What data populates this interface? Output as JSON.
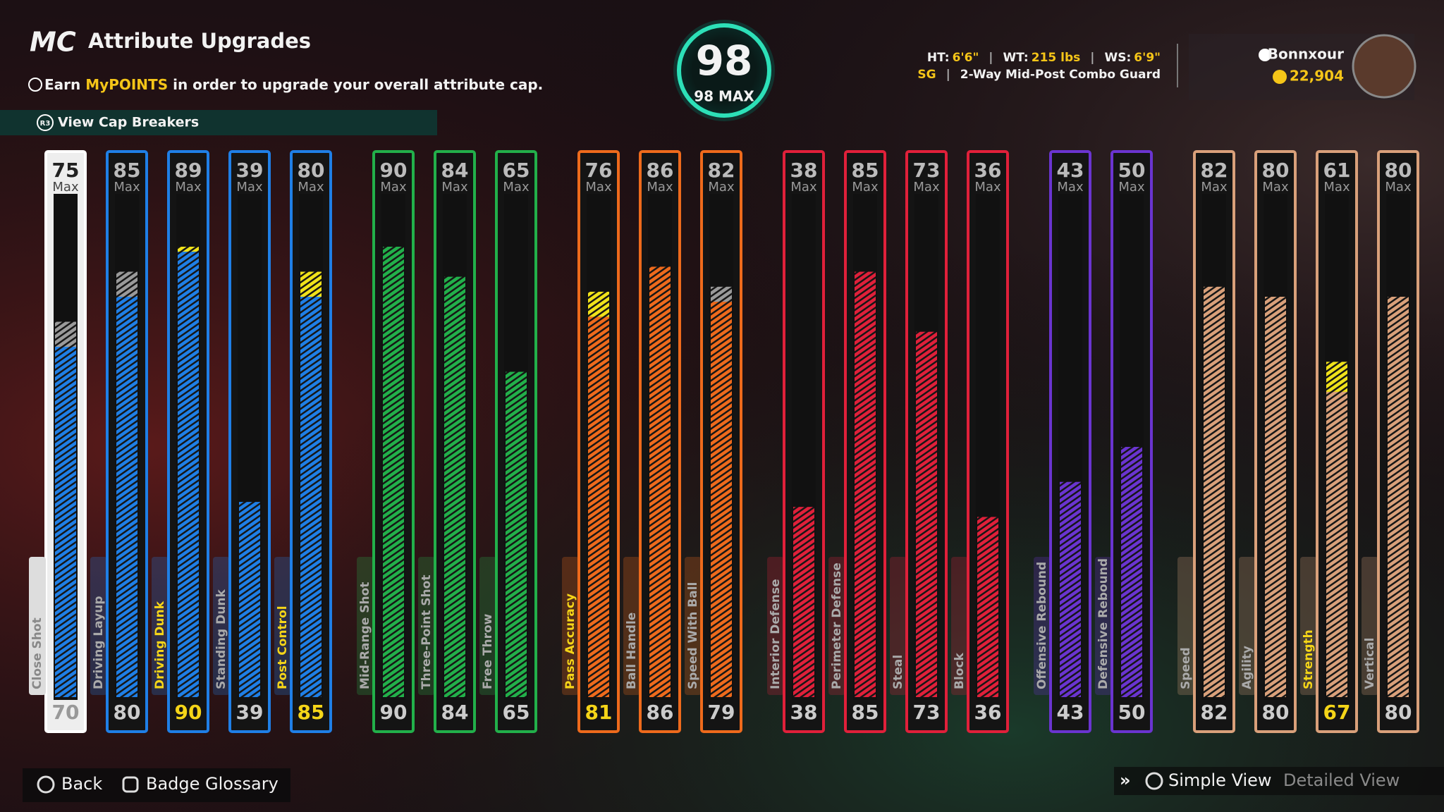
{
  "header": {
    "logo": "MC",
    "title": "Attribute Upgrades",
    "info_prefix": "Earn",
    "info_highlight": "MyPOINTS",
    "info_suffix": "in order to upgrade your overall attribute cap.",
    "cap_breakers_button": "R3",
    "cap_breakers": "View Cap Breakers"
  },
  "overall": {
    "value": 98,
    "max_label": "98 MAX"
  },
  "player": {
    "ht_label": "HT:",
    "ht": "6'6\"",
    "wt_label": "WT:",
    "wt": "215 lbs",
    "ws_label": "WS:",
    "ws": "6'9\"",
    "position": "SG",
    "archetype": "2-Way Mid-Post Combo Guard",
    "username": "Bonnxour",
    "vc": "22,904"
  },
  "max_label": "Max",
  "groups": [
    {
      "color": "#1f7fe6",
      "attributes": [
        {
          "name": "Close Shot",
          "cap": 75,
          "value": 70
        },
        {
          "name": "Driving Layup",
          "cap": 85,
          "value": 80
        },
        {
          "name": "Driving Dunk",
          "cap": 89,
          "value": 90
        },
        {
          "name": "Standing Dunk",
          "cap": 39,
          "value": 39
        },
        {
          "name": "Post Control",
          "cap": 80,
          "value": 85
        }
      ]
    },
    {
      "color": "#22b04a",
      "attributes": [
        {
          "name": "Mid-Range Shot",
          "cap": 90,
          "value": 90
        },
        {
          "name": "Three-Point Shot",
          "cap": 84,
          "value": 84
        },
        {
          "name": "Free Throw",
          "cap": 65,
          "value": 65
        }
      ]
    },
    {
      "color": "#ee6a1c",
      "attributes": [
        {
          "name": "Pass Accuracy",
          "cap": 76,
          "value": 81
        },
        {
          "name": "Ball Handle",
          "cap": 86,
          "value": 86
        },
        {
          "name": "Speed With Ball",
          "cap": 82,
          "value": 79
        }
      ]
    },
    {
      "color": "#e0203a",
      "attributes": [
        {
          "name": "Interior Defense",
          "cap": 38,
          "value": 38
        },
        {
          "name": "Perimeter Defense",
          "cap": 85,
          "value": 85
        },
        {
          "name": "Steal",
          "cap": 73,
          "value": 73
        },
        {
          "name": "Block",
          "cap": 36,
          "value": 36
        }
      ]
    },
    {
      "color": "#6a34d0",
      "attributes": [
        {
          "name": "Offensive Rebound",
          "cap": 43,
          "value": 43
        },
        {
          "name": "Defensive Rebound",
          "cap": 50,
          "value": 50
        }
      ]
    },
    {
      "color": "#d9a07a",
      "attributes": [
        {
          "name": "Speed",
          "cap": 82,
          "value": 82
        },
        {
          "name": "Agility",
          "cap": 80,
          "value": 80
        },
        {
          "name": "Strength",
          "cap": 61,
          "value": 67
        },
        {
          "name": "Vertical",
          "cap": 80,
          "value": 80
        }
      ]
    }
  ],
  "footer": {
    "back": "Back",
    "badge_glossary": "Badge Glossary",
    "simple_view": "Simple View",
    "detailed_view": "Detailed View"
  }
}
